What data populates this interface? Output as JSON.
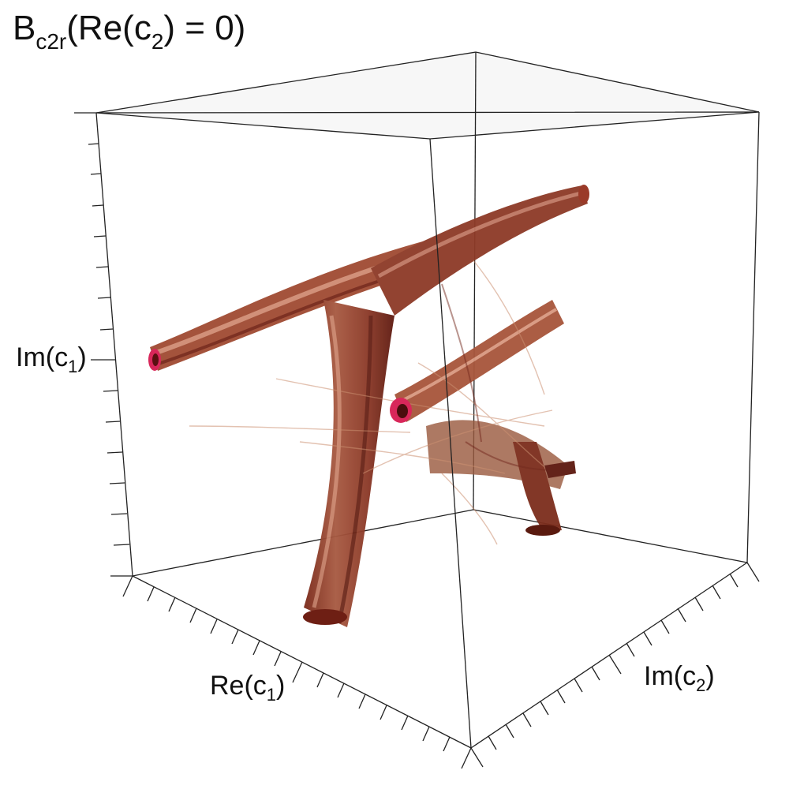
{
  "title": {
    "main": "B",
    "sub": "c2r",
    "rest_open": "(Re(c",
    "rest_sub": "2",
    "rest_close": ") = 0)"
  },
  "axes": {
    "im_c1": {
      "prefix": "Im(c",
      "sub": "1",
      "suffix": ")"
    },
    "re_c1": {
      "prefix": "Re(c",
      "sub": "1",
      "suffix": ")"
    },
    "im_c2": {
      "prefix": "Im(c",
      "sub": "2",
      "suffix": ")"
    }
  },
  "colors": {
    "bundle_dark": "#6e1f14",
    "bundle_mid": "#9a4a34",
    "bundle_light": "#d79a82",
    "tube_cap": "#d8275a",
    "box_line": "#222222"
  }
}
